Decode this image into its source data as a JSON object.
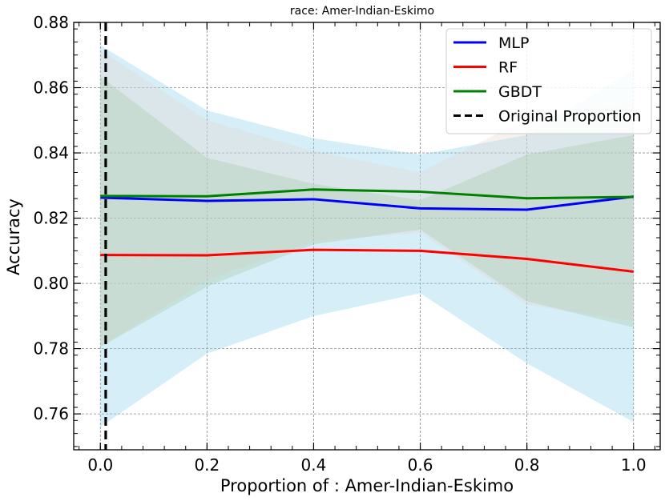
{
  "chart_data": {
    "type": "line",
    "title": "race: Amer-Indian-Eskimo",
    "xlabel": "Proportion of : Amer-Indian-Eskimo",
    "ylabel": "Accuracy",
    "x": [
      0.0,
      0.2,
      0.4,
      0.6,
      0.8,
      1.0
    ],
    "xlim": [
      -0.05,
      1.05
    ],
    "ylim": [
      0.749,
      0.88
    ],
    "xticks": [
      "0.0",
      "0.2",
      "0.4",
      "0.6",
      "0.8",
      "1.0"
    ],
    "yticks": [
      "0.76",
      "0.78",
      "0.80",
      "0.82",
      "0.84",
      "0.86",
      "0.88"
    ],
    "grid": true,
    "legend_position": "top-right",
    "series": [
      {
        "name": "MLP",
        "color": "#0000ff",
        "band_color": "#87ceeb",
        "values": [
          0.8263,
          0.8253,
          0.8258,
          0.823,
          0.8226,
          0.8266
        ],
        "lower": [
          0.756,
          0.7785,
          0.79,
          0.797,
          0.7755,
          0.7575
        ],
        "upper": [
          0.873,
          0.853,
          0.8445,
          0.8395,
          0.8455,
          0.8655
        ]
      },
      {
        "name": "RF",
        "color": "#ff0000",
        "band_color": "#e8d8d0",
        "values": [
          0.8087,
          0.8086,
          0.8103,
          0.81,
          0.8075,
          0.8036
        ],
        "lower": [
          0.7805,
          0.801,
          0.813,
          0.8155,
          0.7935,
          0.7885
        ],
        "upper": [
          0.8715,
          0.85,
          0.8405,
          0.834,
          0.8505,
          0.8555
        ]
      },
      {
        "name": "GBDT",
        "color": "#008000",
        "band_color": "#a9c8a9",
        "values": [
          0.8268,
          0.8267,
          0.8288,
          0.8281,
          0.8261,
          0.8265
        ],
        "lower": [
          0.7805,
          0.799,
          0.812,
          0.8165,
          0.7945,
          0.7865
        ],
        "upper": [
          0.8635,
          0.8385,
          0.8305,
          0.8255,
          0.8395,
          0.8455
        ]
      }
    ],
    "reference_line": {
      "name": "Original Proportion",
      "x": 0.01,
      "color": "#000000",
      "style": "dashed"
    }
  }
}
